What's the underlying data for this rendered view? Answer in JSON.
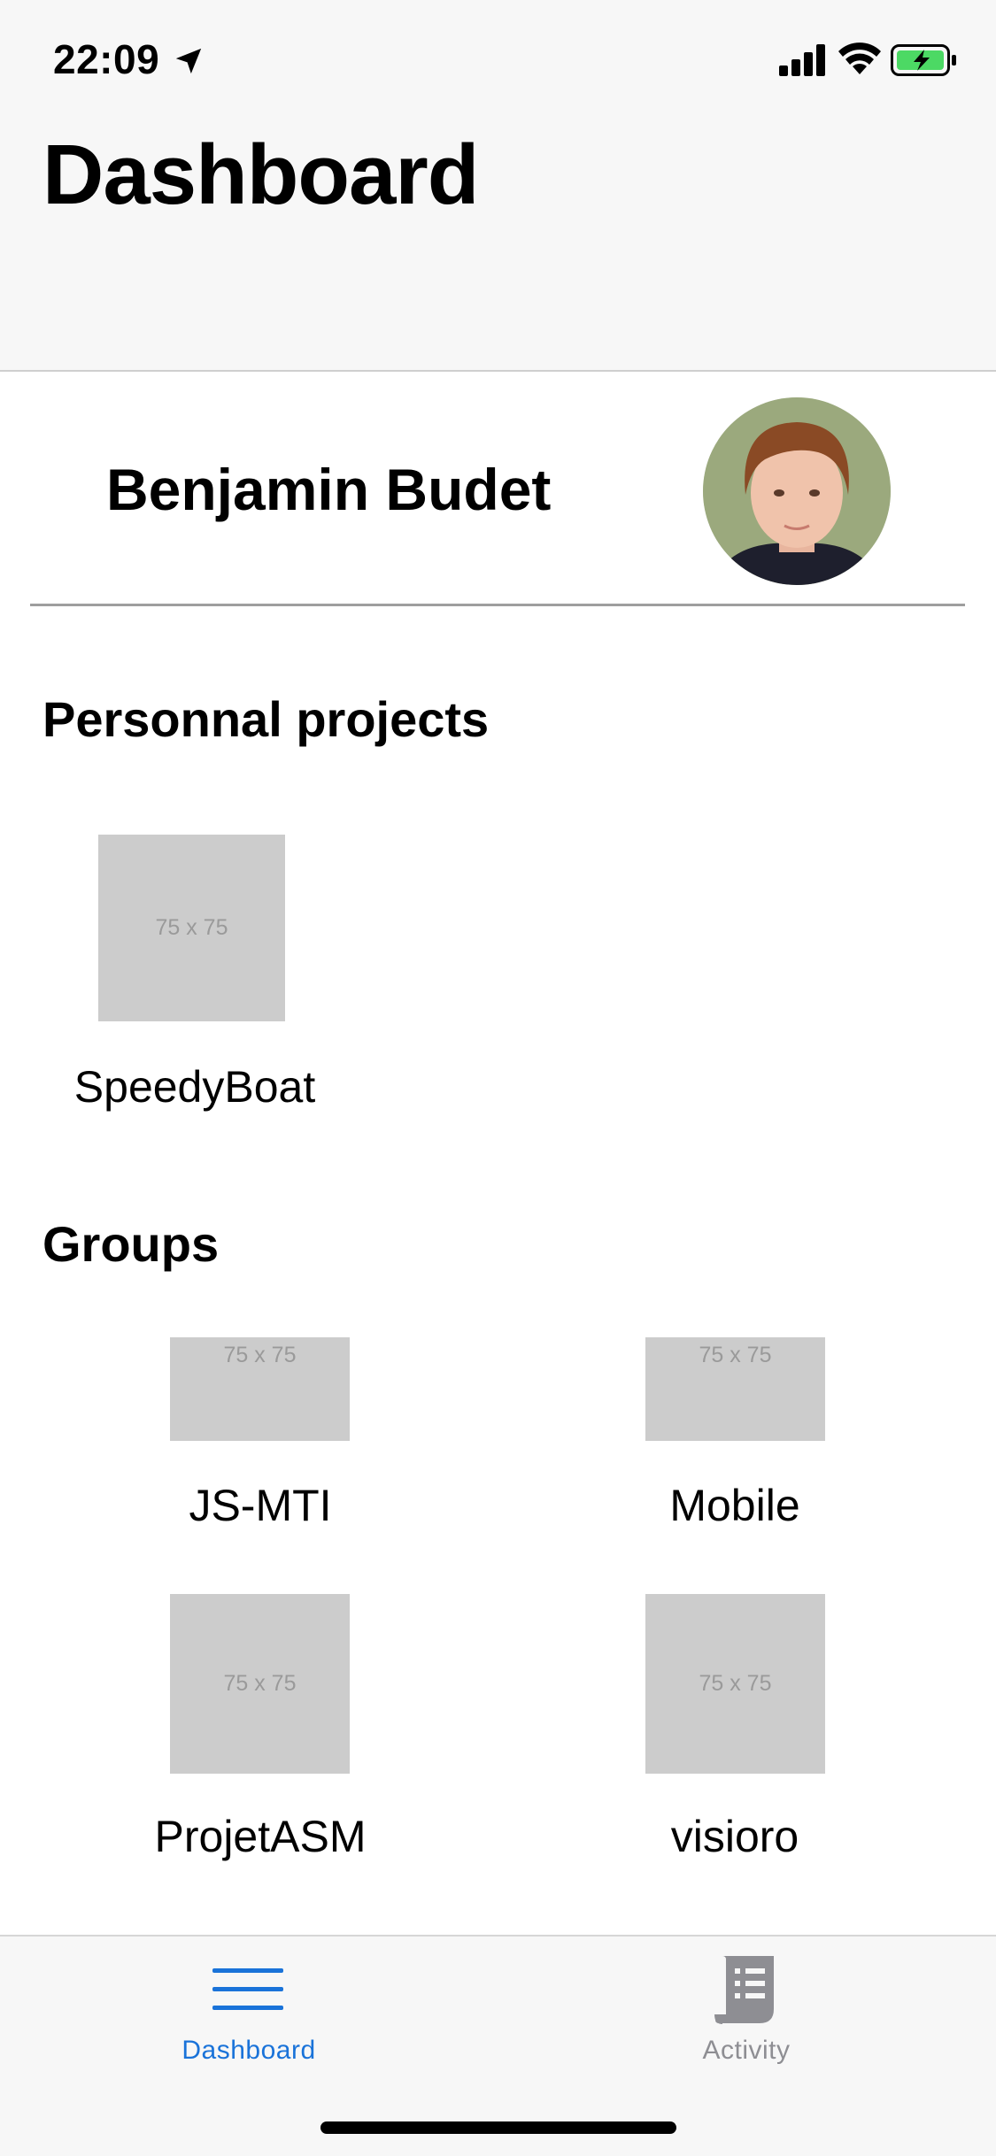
{
  "status_bar": {
    "time": "22:09"
  },
  "header": {
    "title": "Dashboard"
  },
  "profile": {
    "name": "Benjamin Budet"
  },
  "personal": {
    "title": "Personnal projects",
    "items": [
      {
        "label": "SpeedyBoat",
        "placeholder": "75 x 75"
      }
    ]
  },
  "groups": {
    "title": "Groups",
    "items": [
      {
        "label": "JS-MTI",
        "placeholder": "75 x 75"
      },
      {
        "label": "Mobile",
        "placeholder": "75 x 75"
      },
      {
        "label": "ProjetASM",
        "placeholder": "75 x 75"
      },
      {
        "label": "visioro",
        "placeholder": "75 x 75"
      }
    ]
  },
  "tab_bar": {
    "tabs": [
      {
        "label": "Dashboard",
        "icon": "menu-icon",
        "active": true
      },
      {
        "label": "Activity",
        "icon": "receipt-icon",
        "active": false
      }
    ]
  },
  "colors": {
    "accent": "#1a73d9",
    "inactive": "#8e8e93",
    "placeholder": "#cccccc"
  }
}
